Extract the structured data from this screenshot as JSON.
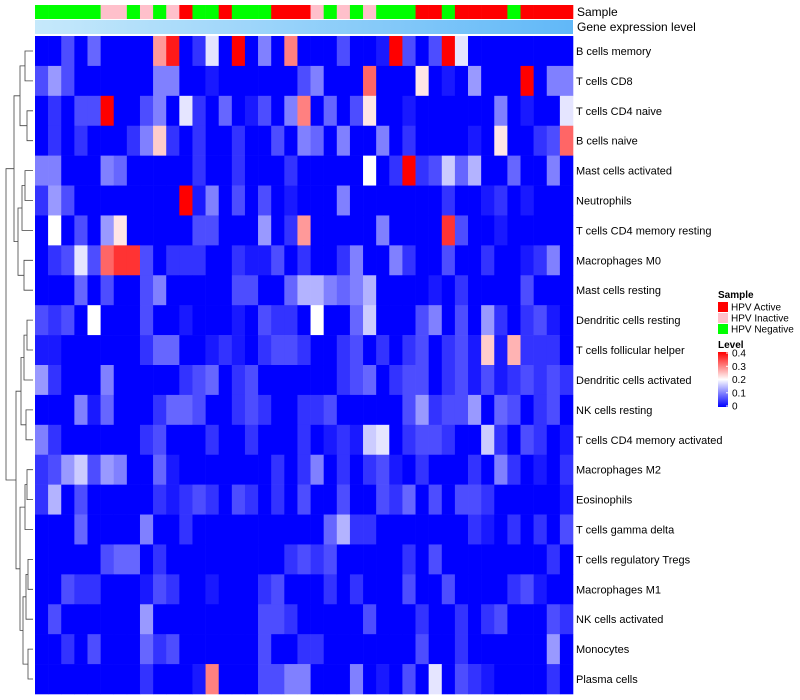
{
  "chart_data": {
    "type": "heatmap",
    "annotation_labels": [
      "Sample",
      "Gene expression level"
    ],
    "sample_annotation": [
      "Neg",
      "Neg",
      "Neg",
      "Neg",
      "Neg",
      "Ina",
      "Ina",
      "Neg",
      "Ina",
      "Neg",
      "Ina",
      "Act",
      "Neg",
      "Neg",
      "Act",
      "Neg",
      "Neg",
      "Neg",
      "Act",
      "Act",
      "Act",
      "Ina",
      "Neg",
      "Ina",
      "Neg",
      "Ina",
      "Neg",
      "Neg",
      "Neg",
      "Act",
      "Act",
      "Neg",
      "Act",
      "Act",
      "Act",
      "Act",
      "Neg",
      "Act",
      "Act",
      "Act",
      "Act"
    ],
    "sample_colors": {
      "Act": "#FF0000",
      "Ina": "#FFC0CB",
      "Neg": "#00FF00"
    },
    "row_labels": [
      "B cells memory",
      "T cells CD8",
      "T cells CD4 naive",
      "B cells naive",
      "Mast cells activated",
      "Neutrophils",
      "T cells CD4 memory resting",
      "Macrophages M0",
      "Mast cells resting",
      "Dendritic cells resting",
      "T cells follicular helper",
      "Dendritic cells activated",
      "NK cells resting",
      "T cells CD4 memory activated",
      "Macrophages M2",
      "Eosinophils",
      "T cells gamma delta",
      "T cells regulatory  Tregs",
      "Macrophages M1",
      "NK cells activated",
      "Monocytes",
      "Plasma cells"
    ],
    "values": [
      [
        0,
        0,
        0.06,
        0,
        0.08,
        0,
        0,
        0,
        0,
        0.28,
        0.38,
        0,
        0.04,
        0.18,
        0,
        0.4,
        0,
        0.1,
        0,
        0.3,
        0,
        0,
        0,
        0.06,
        0,
        0,
        0.02,
        0.4,
        0.06,
        0,
        0.06,
        0.4,
        0.18,
        0,
        0,
        0,
        0,
        0,
        0,
        0,
        0
      ],
      [
        0.06,
        0.12,
        0.06,
        0,
        0,
        0,
        0,
        0,
        0,
        0.1,
        0.1,
        0,
        0,
        0.02,
        0,
        0,
        0,
        0,
        0,
        0,
        0.06,
        0.1,
        0,
        0,
        0,
        0.32,
        0,
        0,
        0,
        0.22,
        0,
        0.02,
        0,
        0.12,
        0,
        0,
        0,
        0.4,
        0,
        0.1,
        0.1
      ],
      [
        0,
        0.04,
        0,
        0.06,
        0.06,
        0.4,
        0,
        0,
        0.06,
        0.1,
        0,
        0.18,
        0.04,
        0,
        0.08,
        0,
        0.02,
        0.06,
        0,
        0.1,
        0.3,
        0,
        0.08,
        0,
        0.06,
        0.22,
        0,
        0,
        0.02,
        0,
        0,
        0,
        0,
        0,
        0,
        0.1,
        0,
        0.02,
        0,
        0,
        0.18
      ],
      [
        0,
        0.04,
        0,
        0.04,
        0,
        0,
        0,
        0.04,
        0.1,
        0.24,
        0.04,
        0,
        0.04,
        0,
        0,
        0.04,
        0,
        0,
        0.06,
        0,
        0.1,
        0.08,
        0,
        0.1,
        0,
        0,
        0.1,
        0,
        0.04,
        0,
        0,
        0,
        0,
        0.02,
        0,
        0.22,
        0,
        0,
        0.04,
        0.06,
        0.32
      ],
      [
        0.1,
        0.1,
        0,
        0,
        0,
        0.1,
        0.08,
        0,
        0,
        0,
        0,
        0,
        0.04,
        0,
        0,
        0.04,
        0,
        0,
        0,
        0.04,
        0,
        0,
        0,
        0,
        0,
        0.2,
        0,
        0.04,
        0.4,
        0.04,
        0.06,
        0.16,
        0.08,
        0.14,
        0,
        0,
        0.08,
        0,
        0,
        0.1,
        0
      ],
      [
        0.04,
        0.12,
        0.06,
        0,
        0,
        0,
        0,
        0,
        0,
        0,
        0,
        0.4,
        0.02,
        0.1,
        0,
        0.06,
        0,
        0.06,
        0,
        0.02,
        0,
        0,
        0,
        0.1,
        0,
        0,
        0,
        0,
        0,
        0,
        0,
        0.04,
        0,
        0,
        0.02,
        0.04,
        0,
        0.02,
        0,
        0,
        0
      ],
      [
        0,
        0.2,
        0,
        0.06,
        0,
        0.12,
        0.22,
        0,
        0,
        0,
        0,
        0,
        0.06,
        0.06,
        0,
        0,
        0,
        0.12,
        0,
        0.04,
        0.28,
        0,
        0,
        0,
        0,
        0,
        0.1,
        0,
        0,
        0,
        0,
        0.36,
        0.06,
        0,
        0,
        0.02,
        0,
        0,
        0,
        0,
        0
      ],
      [
        0,
        0.04,
        0.06,
        0.18,
        0.06,
        0.32,
        0.36,
        0.36,
        0.06,
        0,
        0.04,
        0.04,
        0.04,
        0,
        0,
        0.04,
        0.02,
        0.02,
        0.06,
        0,
        0.04,
        0,
        0,
        0.04,
        0.1,
        0,
        0,
        0.1,
        0.04,
        0,
        0,
        0.06,
        0,
        0,
        0.04,
        0,
        0,
        0.02,
        0.04,
        0.1,
        0
      ],
      [
        0,
        0,
        0,
        0.08,
        0,
        0.06,
        0,
        0,
        0.06,
        0.1,
        0,
        0,
        0,
        0,
        0,
        0.06,
        0.06,
        0,
        0,
        0.08,
        0.14,
        0.14,
        0.1,
        0.08,
        0.1,
        0.14,
        0,
        0,
        0,
        0,
        0.02,
        0,
        0.04,
        0,
        0,
        0,
        0,
        0.06,
        0,
        0,
        0
      ],
      [
        0.06,
        0.04,
        0.06,
        0,
        0.2,
        0,
        0,
        0,
        0.06,
        0,
        0,
        0.02,
        0,
        0,
        0,
        0.02,
        0,
        0.06,
        0.04,
        0.04,
        0,
        0.2,
        0,
        0,
        0.08,
        0.16,
        0,
        0,
        0,
        0.06,
        0.1,
        0,
        0.06,
        0,
        0.12,
        0.04,
        0,
        0.04,
        0.06,
        0.02,
        0
      ],
      [
        0.02,
        0.02,
        0,
        0,
        0,
        0,
        0,
        0,
        0.04,
        0.08,
        0.08,
        0,
        0,
        0.02,
        0.04,
        0.02,
        0,
        0.04,
        0.06,
        0.06,
        0.04,
        0,
        0,
        0.04,
        0.06,
        0,
        0.04,
        0,
        0.04,
        0.06,
        0,
        0.04,
        0.06,
        0.02,
        0.24,
        0.02,
        0.26,
        0.04,
        0.04,
        0.04,
        0
      ],
      [
        0.12,
        0.04,
        0,
        0,
        0,
        0.1,
        0,
        0,
        0,
        0,
        0,
        0.04,
        0.06,
        0.08,
        0,
        0.04,
        0.06,
        0,
        0,
        0,
        0,
        0,
        0,
        0.04,
        0.06,
        0.08,
        0,
        0.04,
        0.06,
        0.06,
        0,
        0.04,
        0.06,
        0.02,
        0.06,
        0.02,
        0.04,
        0.06,
        0.04,
        0.06,
        0.04
      ],
      [
        0,
        0,
        0,
        0.1,
        0.02,
        0.08,
        0,
        0,
        0,
        0.04,
        0.08,
        0.08,
        0.06,
        0,
        0,
        0.04,
        0.06,
        0.04,
        0,
        0,
        0.04,
        0.04,
        0.06,
        0,
        0,
        0,
        0,
        0,
        0.06,
        0.12,
        0.04,
        0.06,
        0.06,
        0.12,
        0,
        0.08,
        0.06,
        0,
        0.04,
        0.06,
        0
      ],
      [
        0.1,
        0.04,
        0,
        0,
        0,
        0,
        0,
        0,
        0.04,
        0.06,
        0,
        0,
        0,
        0.04,
        0,
        0,
        0.04,
        0,
        0,
        0,
        0.04,
        0,
        0.02,
        0.04,
        0.02,
        0.16,
        0.18,
        0,
        0.04,
        0.06,
        0.06,
        0.04,
        0,
        0,
        0.16,
        0.04,
        0,
        0.06,
        0.04,
        0,
        0.02
      ],
      [
        0.04,
        0.06,
        0.12,
        0.16,
        0.06,
        0.12,
        0.1,
        0,
        0,
        0.08,
        0.02,
        0,
        0,
        0,
        0,
        0,
        0,
        0,
        0.04,
        0,
        0.04,
        0.1,
        0,
        0.04,
        0,
        0.04,
        0.06,
        0.02,
        0,
        0.04,
        0,
        0,
        0,
        0.04,
        0,
        0.1,
        0.04,
        0,
        0.02,
        0,
        0.04
      ],
      [
        0.04,
        0.14,
        0,
        0.06,
        0,
        0,
        0,
        0,
        0,
        0.04,
        0.02,
        0.04,
        0.06,
        0.04,
        0,
        0.06,
        0.04,
        0,
        0.04,
        0,
        0.06,
        0,
        0,
        0.06,
        0,
        0,
        0.06,
        0.04,
        0.08,
        0,
        0.06,
        0,
        0.06,
        0.06,
        0.04,
        0,
        0,
        0,
        0,
        0,
        0.02
      ],
      [
        0,
        0,
        0,
        0.08,
        0,
        0,
        0,
        0,
        0.1,
        0,
        0,
        0.04,
        0,
        0,
        0,
        0,
        0,
        0,
        0,
        0,
        0,
        0,
        0.08,
        0.14,
        0.04,
        0.04,
        0,
        0,
        0,
        0,
        0,
        0,
        0,
        0.04,
        0.02,
        0,
        0.04,
        0,
        0.04,
        0,
        0.06
      ],
      [
        0,
        0,
        0,
        0,
        0,
        0.06,
        0.08,
        0.08,
        0,
        0.04,
        0,
        0,
        0,
        0,
        0,
        0,
        0,
        0,
        0,
        0.04,
        0.06,
        0.04,
        0.06,
        0,
        0,
        0,
        0,
        0,
        0.04,
        0,
        0.06,
        0,
        0,
        0,
        0,
        0,
        0,
        0,
        0,
        0.04,
        0
      ],
      [
        0,
        0,
        0.06,
        0.04,
        0.04,
        0,
        0,
        0,
        0.02,
        0.06,
        0.04,
        0,
        0,
        0.02,
        0,
        0,
        0,
        0.04,
        0.06,
        0,
        0,
        0,
        0.04,
        0,
        0.04,
        0,
        0,
        0,
        0.06,
        0,
        0,
        0.06,
        0,
        0,
        0,
        0,
        0.04,
        0.06,
        0.02,
        0,
        0
      ],
      [
        0,
        0.06,
        0,
        0,
        0,
        0,
        0,
        0,
        0.12,
        0,
        0,
        0,
        0,
        0,
        0,
        0,
        0,
        0.06,
        0.06,
        0.04,
        0,
        0,
        0,
        0,
        0,
        0.06,
        0,
        0,
        0,
        0.04,
        0,
        0,
        0.04,
        0,
        0.04,
        0.06,
        0,
        0,
        0,
        0.06,
        0.04
      ],
      [
        0,
        0,
        0.04,
        0,
        0.06,
        0,
        0,
        0,
        0.08,
        0.04,
        0.06,
        0,
        0,
        0,
        0,
        0,
        0,
        0.06,
        0,
        0,
        0.04,
        0.04,
        0,
        0,
        0,
        0,
        0,
        0,
        0,
        0.06,
        0,
        0,
        0.04,
        0,
        0,
        0,
        0,
        0,
        0,
        0.12,
        0
      ],
      [
        0,
        0,
        0,
        0,
        0,
        0,
        0,
        0,
        0.04,
        0,
        0,
        0,
        0.02,
        0.3,
        0,
        0,
        0,
        0.06,
        0.06,
        0.1,
        0.1,
        0,
        0,
        0,
        0.1,
        0,
        0.02,
        0,
        0.06,
        0,
        0.18,
        0,
        0.06,
        0.04,
        0.02,
        0,
        0,
        0,
        0,
        0.04,
        0
      ]
    ],
    "legend_sample": {
      "title": "Sample",
      "entries": [
        {
          "label": "HPV Active",
          "color": "#FF0000"
        },
        {
          "label": "HPV Inactive",
          "color": "#FFC0CB"
        },
        {
          "label": "HPV Negative",
          "color": "#00FF00"
        }
      ]
    },
    "legend_level": {
      "title": "Level",
      "ticks": [
        "0.4",
        "0.3",
        "0.2",
        "0.1",
        "0"
      ],
      "range": [
        0,
        0.4
      ],
      "colors": {
        "low": "#0000FF",
        "mid": "#FFFFFF",
        "high": "#FF0000"
      }
    },
    "expression_bar_colors": [
      "#C6E9FB",
      "#61B8F8"
    ]
  }
}
